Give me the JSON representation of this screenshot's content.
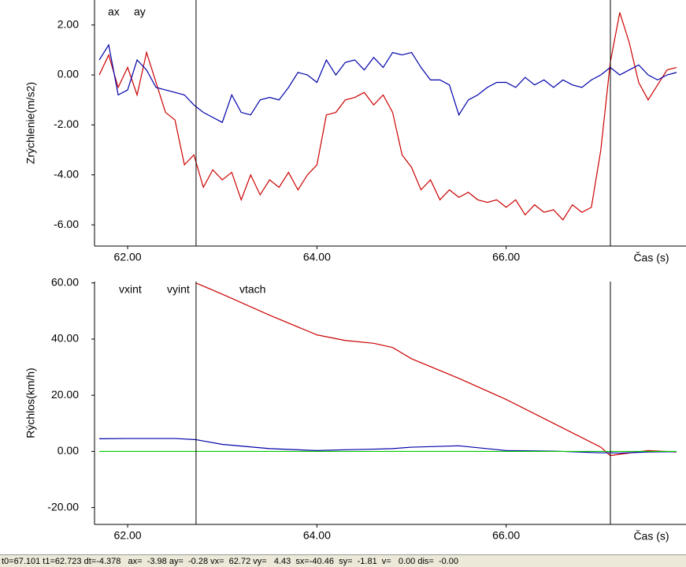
{
  "chart_data": [
    {
      "type": "line",
      "y_label": "Zrýchlenie(m/s2)",
      "x_label": "Čas (s)",
      "x": [
        61.7,
        61.8,
        61.9,
        62.0,
        62.1,
        62.2,
        62.3,
        62.4,
        62.5,
        62.6,
        62.7,
        62.8,
        62.9,
        63.0,
        63.1,
        63.2,
        63.3,
        63.4,
        63.5,
        63.6,
        63.7,
        63.8,
        63.9,
        64.0,
        64.1,
        64.2,
        64.3,
        64.4,
        64.5,
        64.6,
        64.7,
        64.8,
        64.9,
        65.0,
        65.1,
        65.2,
        65.3,
        65.4,
        65.5,
        65.6,
        65.7,
        65.8,
        65.9,
        66.0,
        66.1,
        66.2,
        66.3,
        66.4,
        66.5,
        66.6,
        66.7,
        66.8,
        66.9,
        67.0,
        67.1,
        67.2,
        67.3,
        67.4,
        67.5,
        67.6,
        67.7,
        67.8
      ],
      "series": [
        {
          "name": "ax",
          "color": "#cc0000",
          "values": [
            0.0,
            0.8,
            -0.5,
            0.3,
            -0.8,
            0.9,
            -0.3,
            -1.5,
            -1.8,
            -3.6,
            -3.2,
            -4.5,
            -3.8,
            -4.2,
            -3.9,
            -5.0,
            -4.0,
            -4.8,
            -4.2,
            -4.5,
            -3.9,
            -4.6,
            -4.0,
            -3.6,
            -1.6,
            -1.5,
            -1.0,
            -0.9,
            -0.7,
            -1.2,
            -0.8,
            -1.5,
            -3.2,
            -3.7,
            -4.6,
            -4.2,
            -5.0,
            -4.6,
            -4.9,
            -4.7,
            -5.0,
            -5.1,
            -5.0,
            -5.3,
            -5.0,
            -5.6,
            -5.2,
            -5.5,
            -5.4,
            -5.8,
            -5.2,
            -5.5,
            -5.3,
            -3.0,
            0.5,
            2.5,
            1.3,
            -0.3,
            -1.0,
            -0.4,
            0.2,
            0.3
          ]
        },
        {
          "name": "ay",
          "color": "#0000aa",
          "values": [
            0.6,
            1.2,
            -0.8,
            -0.6,
            0.6,
            0.2,
            -0.5,
            -0.6,
            -0.7,
            -0.8,
            -1.2,
            -1.5,
            -1.7,
            -1.9,
            -0.8,
            -1.5,
            -1.6,
            -1.0,
            -0.9,
            -1.0,
            -0.5,
            0.1,
            0.0,
            -0.3,
            0.6,
            0.0,
            0.5,
            0.6,
            0.2,
            0.7,
            0.3,
            0.9,
            0.8,
            0.9,
            0.3,
            -0.2,
            -0.2,
            -0.4,
            -1.6,
            -1.0,
            -0.8,
            -0.5,
            -0.3,
            -0.3,
            -0.5,
            -0.1,
            -0.4,
            -0.2,
            -0.5,
            -0.2,
            -0.4,
            -0.5,
            -0.2,
            0.0,
            0.3,
            0.0,
            0.2,
            0.4,
            0.0,
            -0.2,
            0.0,
            0.1
          ]
        }
      ],
      "xlim": [
        61.65,
        67.9
      ],
      "ylim": [
        -6.85,
        3.0
      ],
      "xticks": [
        {
          "value": 62,
          "label": "62.00"
        },
        {
          "value": 64,
          "label": "64.00"
        },
        {
          "value": 66,
          "label": "66.00"
        }
      ],
      "yticks": [
        {
          "value": -6,
          "label": "-6.00"
        },
        {
          "value": -4,
          "label": "-4.00"
        },
        {
          "value": -2,
          "label": "-2.00"
        },
        {
          "value": 0,
          "label": "0.00"
        },
        {
          "value": 2,
          "label": "2.00"
        }
      ]
    },
    {
      "type": "line",
      "y_label": "Rýchlos(km/h)",
      "x_label": "Čas (s)",
      "x": [
        61.7,
        62.0,
        62.5,
        62.72,
        63.0,
        63.5,
        64.0,
        64.3,
        64.6,
        64.8,
        65.0,
        65.5,
        66.0,
        66.5,
        67.0,
        67.1,
        67.2,
        67.5,
        67.8
      ],
      "series": [
        {
          "name": "vxint",
          "color": "#cc0000",
          "values": [
            null,
            null,
            null,
            60,
            56,
            48.5,
            41.5,
            39.5,
            38.5,
            37,
            33,
            26,
            18.5,
            10,
            1.5,
            -1.5,
            -1,
            0.3,
            -0.2
          ]
        },
        {
          "name": "vyint",
          "color": "#0000aa",
          "values": [
            4.5,
            4.6,
            4.6,
            4.2,
            2.5,
            1.0,
            0.3,
            0.6,
            0.8,
            1.0,
            1.5,
            2.0,
            0.3,
            0.1,
            -0.5,
            -0.5,
            -0.6,
            -0.2,
            -0.1
          ]
        },
        {
          "name": "vtach",
          "color": "#00cc00",
          "values": [
            0,
            0,
            0,
            0,
            0,
            0,
            0,
            0,
            0,
            0,
            0,
            0,
            0,
            0,
            0,
            0,
            0,
            0,
            0
          ]
        }
      ],
      "xlim": [
        61.65,
        67.9
      ],
      "ylim": [
        -26,
        60.5
      ],
      "xticks": [
        {
          "value": 62,
          "label": "62.00"
        },
        {
          "value": 64,
          "label": "64.00"
        },
        {
          "value": 66,
          "label": "66.00"
        }
      ],
      "yticks": [
        {
          "value": -20,
          "label": "-20.00"
        },
        {
          "value": 0,
          "label": "0.00"
        },
        {
          "value": 20,
          "label": "20.00"
        },
        {
          "value": 40,
          "label": "40.00"
        },
        {
          "value": 60,
          "label": "60.00"
        }
      ]
    }
  ],
  "cursors": [
    67.101,
    62.723
  ],
  "status_bar": "t0=67.101 t1=62.723 dt=-4.378   ax=  -3.98 ay=  -0.28 vx=  62.72 vy=   4.43  sx=-40.46  sy=  -1.81  v=   0.00 dis=  -0.00"
}
